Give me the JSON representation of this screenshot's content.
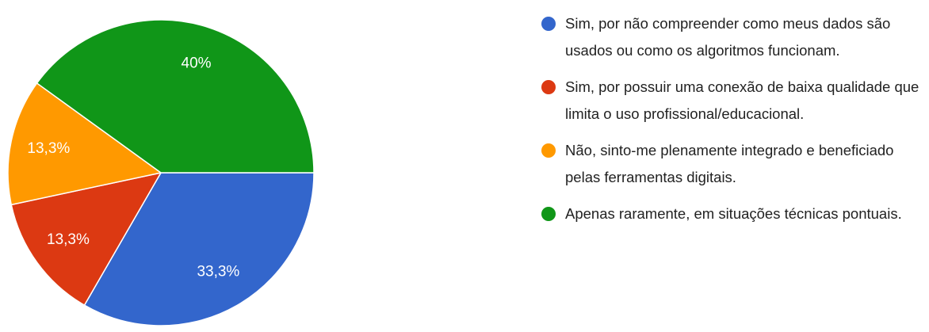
{
  "chart_data": {
    "type": "pie",
    "categories": [
      "Sim, por não compreender como meus dados são usados ou como os algoritmos funcionam.",
      "Sim, por possuir uma conexão de baixa qualidade que limita o uso profissional/educacional.",
      "Não, sinto-me plenamente integrado e beneficiado pelas ferramentas digitais.",
      "Apenas raramente, em situações técnicas pontuais."
    ],
    "values": [
      33.3,
      13.3,
      13.3,
      40
    ],
    "value_labels": [
      "33,3%",
      "13,3%",
      "13,3%",
      "40%"
    ],
    "colors": [
      "#3366cc",
      "#dc3912",
      "#ff9900",
      "#109618"
    ]
  }
}
